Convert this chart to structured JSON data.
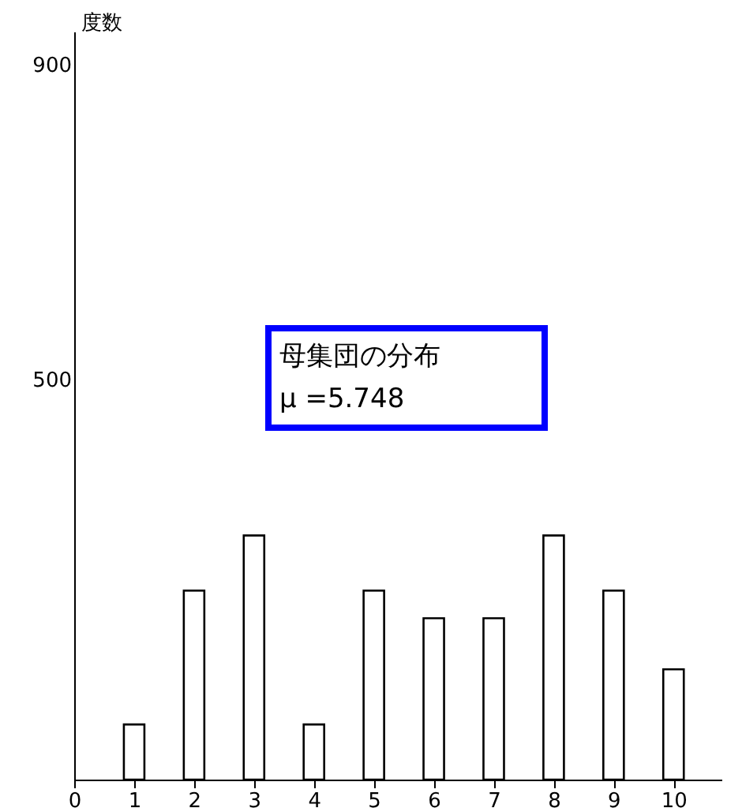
{
  "chart_data": {
    "type": "bar",
    "ylabel": "度数",
    "annotations": [
      "母集団の分布",
      "μ =5.748"
    ],
    "x": [
      1,
      2,
      3,
      4,
      5,
      6,
      7,
      8,
      9,
      10
    ],
    "values": [
      70,
      240,
      310,
      70,
      240,
      205,
      205,
      310,
      240,
      140
    ],
    "color": "#ffffff",
    "xlim": [
      0,
      10.8
    ],
    "xticks": [
      0,
      1,
      2,
      3,
      4,
      5,
      6,
      7,
      8,
      9,
      10
    ],
    "ylim": [
      0,
      950
    ],
    "yticks": [
      500,
      900
    ]
  }
}
